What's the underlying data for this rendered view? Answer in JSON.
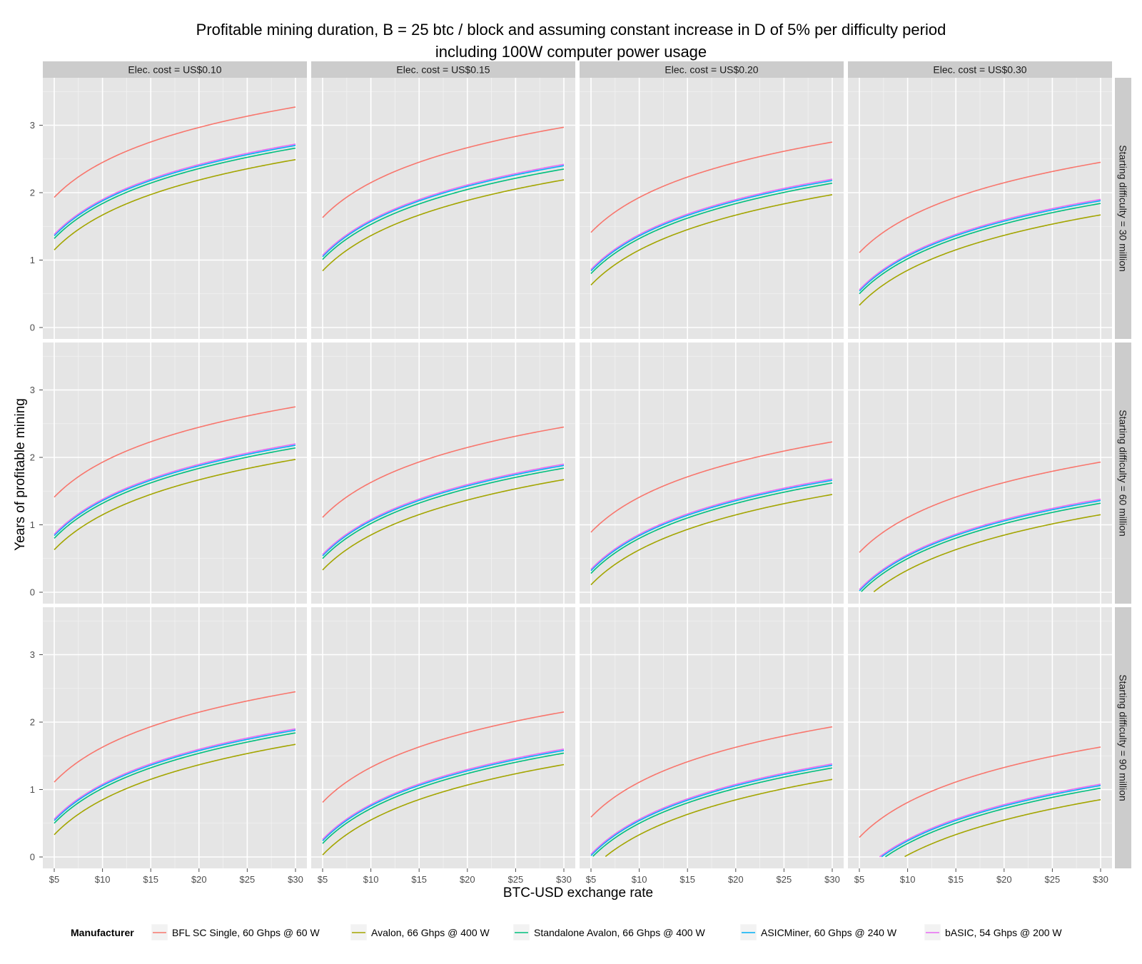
{
  "chart_data": {
    "type": "line",
    "title_line1": "Profitable mining duration, B = 25 btc / block and assuming constant increase in D of 5% per difficulty period",
    "title_line2": "including 100W computer power usage",
    "xlabel": "BTC-USD exchange rate",
    "ylabel": "Years of profitable mining",
    "xlim": [
      5,
      30
    ],
    "ylim": [
      0,
      3.5
    ],
    "x_ticks": [
      5,
      10,
      15,
      20,
      25,
      30
    ],
    "x_tick_labels": [
      "$5",
      "$10",
      "$15",
      "$20",
      "$25",
      "$30"
    ],
    "y_ticks": [
      0,
      1,
      2,
      3
    ],
    "y_tick_labels": [
      "0",
      "1",
      "2",
      "3"
    ],
    "grid": true,
    "legend_placement": "bottom",
    "legend_title": "Manufacturer",
    "column_facets": [
      "Elec. cost = US$0.10",
      "Elec. cost = US$0.15",
      "Elec. cost = US$0.20",
      "Elec. cost = US$0.30"
    ],
    "row_facets": [
      "Starting difficulty = 30 million",
      "Starting difficulty = 60 million",
      "Starting difficulty = 90 million"
    ],
    "series": [
      {
        "name": "BFL SC Single, 60 Ghps @ 60 W",
        "color": "#F8766D"
      },
      {
        "name": "Avalon, 66 Ghps @ 400 W",
        "color": "#A3A500"
      },
      {
        "name": "Standalone Avalon, 66 Ghps @ 400 W",
        "color": "#00BF7D"
      },
      {
        "name": "ASICMiner, 60 Ghps @ 240 W",
        "color": "#00B0F6"
      },
      {
        "name": "bASIC, 54 Ghps @ 200 W",
        "color": "#E76BF3"
      }
    ],
    "panels": [
      {
        "row": 0,
        "col": 0,
        "start_end": [
          [
            1.93,
            3.27
          ],
          [
            1.15,
            2.49
          ],
          [
            1.32,
            2.66
          ],
          [
            1.36,
            2.7
          ],
          [
            1.38,
            2.72
          ]
        ]
      },
      {
        "row": 0,
        "col": 1,
        "start_end": [
          [
            1.63,
            2.97
          ],
          [
            0.84,
            2.19
          ],
          [
            1.01,
            2.35
          ],
          [
            1.05,
            2.4
          ],
          [
            1.07,
            2.42
          ]
        ]
      },
      {
        "row": 0,
        "col": 2,
        "start_end": [
          [
            1.41,
            2.75
          ],
          [
            0.63,
            1.97
          ],
          [
            0.8,
            2.14
          ],
          [
            0.84,
            2.18
          ],
          [
            0.86,
            2.2
          ]
        ]
      },
      {
        "row": 0,
        "col": 3,
        "start_end": [
          [
            1.11,
            2.45
          ],
          [
            0.33,
            1.67
          ],
          [
            0.5,
            1.84
          ],
          [
            0.54,
            1.88
          ],
          [
            0.56,
            1.9
          ]
        ]
      },
      {
        "row": 1,
        "col": 0,
        "start_end": [
          [
            1.41,
            2.75
          ],
          [
            0.63,
            1.97
          ],
          [
            0.8,
            2.14
          ],
          [
            0.84,
            2.18
          ],
          [
            0.86,
            2.2
          ]
        ]
      },
      {
        "row": 1,
        "col": 1,
        "start_end": [
          [
            1.11,
            2.45
          ],
          [
            0.33,
            1.67
          ],
          [
            0.5,
            1.84
          ],
          [
            0.54,
            1.88
          ],
          [
            0.56,
            1.9
          ]
        ]
      },
      {
        "row": 1,
        "col": 2,
        "start_end": [
          [
            0.89,
            2.23
          ],
          [
            0.11,
            1.45
          ],
          [
            0.28,
            1.62
          ],
          [
            0.32,
            1.66
          ],
          [
            0.34,
            1.68
          ]
        ]
      },
      {
        "row": 1,
        "col": 3,
        "start_end": [
          [
            0.59,
            1.93
          ],
          [
            -0.19,
            1.15
          ],
          [
            -0.02,
            1.32
          ],
          [
            0.02,
            1.36
          ],
          [
            0.04,
            1.38
          ]
        ]
      },
      {
        "row": 2,
        "col": 0,
        "start_end": [
          [
            1.11,
            2.45
          ],
          [
            0.33,
            1.67
          ],
          [
            0.5,
            1.84
          ],
          [
            0.54,
            1.88
          ],
          [
            0.56,
            1.9
          ]
        ]
      },
      {
        "row": 2,
        "col": 1,
        "start_end": [
          [
            0.81,
            2.15
          ],
          [
            0.03,
            1.37
          ],
          [
            0.2,
            1.54
          ],
          [
            0.24,
            1.58
          ],
          [
            0.26,
            1.6
          ]
        ]
      },
      {
        "row": 2,
        "col": 2,
        "start_end": [
          [
            0.59,
            1.93
          ],
          [
            -0.19,
            1.15
          ],
          [
            -0.02,
            1.32
          ],
          [
            0.02,
            1.36
          ],
          [
            0.04,
            1.38
          ]
        ]
      },
      {
        "row": 2,
        "col": 3,
        "start_end": [
          [
            0.29,
            1.63
          ],
          [
            -0.49,
            0.85
          ],
          [
            -0.32,
            1.02
          ],
          [
            -0.28,
            1.06
          ],
          [
            -0.26,
            1.08
          ]
        ]
      }
    ]
  }
}
